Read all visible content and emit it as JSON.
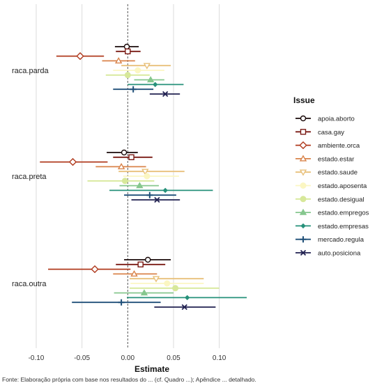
{
  "chart_data": {
    "type": "scatter",
    "xlabel": "Estimate",
    "xlim": [
      -0.135,
      0.165
    ],
    "xticks": [
      -0.1,
      -0.05,
      0,
      0.05,
      0.1
    ],
    "tick_labels": [
      "-0.10",
      "-0.05",
      "0.00",
      "0.05",
      "0.10"
    ],
    "grid": true,
    "reference_line": 0,
    "legend_title": "Issue",
    "legend_position": "right",
    "categories": [
      "raca.parda",
      "raca.preta",
      "raca.outra"
    ],
    "series": [
      {
        "name": "apoia.aborto",
        "color": "#1a0a0a",
        "marker": "circle",
        "estimates": [
          -0.001,
          -0.004,
          0.022
        ],
        "lower": [
          -0.014,
          -0.023,
          -0.004
        ],
        "upper": [
          0.012,
          0.011,
          0.047
        ]
      },
      {
        "name": "casa.gay",
        "color": "#7a1a14",
        "marker": "square",
        "estimates": [
          0.0,
          0.004,
          0.014
        ],
        "lower": [
          -0.013,
          -0.016,
          -0.013
        ],
        "upper": [
          0.014,
          0.027,
          0.041
        ]
      },
      {
        "name": "ambiente.orca",
        "color": "#b03a1e",
        "marker": "diamond",
        "estimates": [
          -0.052,
          -0.06,
          -0.036
        ],
        "lower": [
          -0.078,
          -0.096,
          -0.087
        ],
        "upper": [
          -0.026,
          -0.022,
          0.003
        ]
      },
      {
        "name": "estado.estar",
        "color": "#d9834a",
        "marker": "triangle-up",
        "estimates": [
          -0.01,
          -0.007,
          0.007
        ],
        "lower": [
          -0.028,
          -0.035,
          -0.016
        ],
        "upper": [
          0.008,
          0.02,
          0.032
        ]
      },
      {
        "name": "estado.saude",
        "color": "#e8c07a",
        "marker": "triangle-down",
        "estimates": [
          0.021,
          0.019,
          0.031
        ],
        "lower": [
          -0.007,
          -0.01,
          0.002
        ],
        "upper": [
          0.047,
          0.062,
          0.083
        ]
      },
      {
        "name": "estado.aposenta",
        "color": "#fbf6c2",
        "marker": "point",
        "estimates": [
          0.011,
          0.021,
          0.043
        ],
        "lower": [
          -0.016,
          -0.005,
          0.003
        ],
        "upper": [
          0.04,
          0.056,
          0.083
        ]
      },
      {
        "name": "estado.desigual",
        "color": "#d7e89a",
        "marker": "point",
        "estimates": [
          0.0,
          -0.003,
          0.052
        ],
        "lower": [
          -0.024,
          -0.044,
          0.002
        ],
        "upper": [
          0.024,
          0.029,
          0.1
        ]
      },
      {
        "name": "estado.empregos",
        "color": "#86c78e",
        "marker": "triangle-up",
        "estimates": [
          0.025,
          0.013,
          0.018
        ],
        "lower": [
          0.007,
          -0.009,
          -0.015
        ],
        "upper": [
          0.04,
          0.034,
          0.05
        ]
      },
      {
        "name": "estado.empresas",
        "color": "#26917a",
        "marker": "diamond-small",
        "estimates": [
          0.03,
          0.041,
          0.065
        ],
        "lower": [
          0.0,
          -0.02,
          -0.001
        ],
        "upper": [
          0.061,
          0.093,
          0.13
        ]
      },
      {
        "name": "mercado.regula",
        "color": "#1f4f78",
        "marker": "plus",
        "estimates": [
          0.006,
          0.024,
          -0.007
        ],
        "lower": [
          -0.016,
          -0.004,
          -0.061
        ],
        "upper": [
          0.028,
          0.053,
          0.036
        ]
      },
      {
        "name": "auto.posiciona",
        "color": "#202050",
        "marker": "x",
        "estimates": [
          0.041,
          0.032,
          0.062
        ],
        "lower": [
          0.024,
          0.004,
          0.029
        ],
        "upper": [
          0.057,
          0.057,
          0.096
        ]
      }
    ]
  },
  "footer_text": "Fonte: Elaboração própria com base nos resultados do ... (cf. Quadro ...); Apêndice ... detalhado."
}
